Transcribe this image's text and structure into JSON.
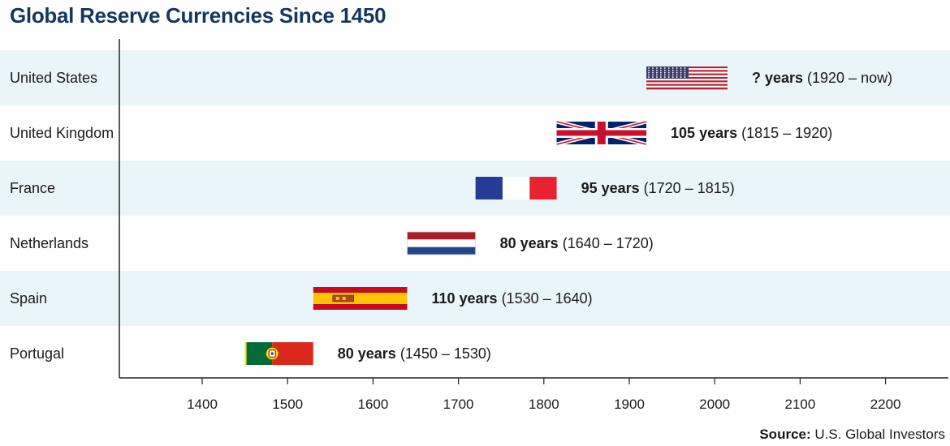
{
  "title": "Global Reserve Currencies Since 1450",
  "source": {
    "label": "Source:",
    "text": "U.S. Global Investors"
  },
  "chart_data": {
    "type": "bar",
    "orientation": "horizontal",
    "title": "Global Reserve Currencies Since 1450",
    "xlabel": "",
    "ylabel": "",
    "xlim": [
      1305,
      2270
    ],
    "x_ticks": [
      1400,
      1500,
      1600,
      1700,
      1800,
      1900,
      2000,
      2100,
      2200
    ],
    "categories": [
      "United States",
      "United Kingdom",
      "France",
      "Netherlands",
      "Spain",
      "Portugal"
    ],
    "series": [
      {
        "bars": [
          {
            "country": "United States",
            "start": 1920,
            "end": 2015,
            "duration_bold": "? years",
            "range": "(1920 – now)",
            "flag": "usa-flag"
          },
          {
            "country": "United Kingdom",
            "start": 1815,
            "end": 1920,
            "duration_bold": "105 years",
            "range": "(1815 – 1920)",
            "flag": "uk-flag"
          },
          {
            "country": "France",
            "start": 1720,
            "end": 1815,
            "duration_bold": "95 years",
            "range": "(1720 – 1815)",
            "flag": "france-flag"
          },
          {
            "country": "Netherlands",
            "start": 1640,
            "end": 1720,
            "duration_bold": "80 years",
            "range": "(1640 – 1720)",
            "flag": "netherlands-flag"
          },
          {
            "country": "Spain",
            "start": 1530,
            "end": 1640,
            "duration_bold": "110 years",
            "range": "(1530 – 1640)",
            "flag": "spain-flag"
          },
          {
            "country": "Portugal",
            "start": 1450,
            "end": 1530,
            "duration_bold": "80 years",
            "range": "(1450 – 1530)",
            "flag": "portugal-flag"
          }
        ]
      }
    ],
    "grid": false,
    "row_band_color": "#eaf5fa",
    "title_color": "#14375e"
  }
}
